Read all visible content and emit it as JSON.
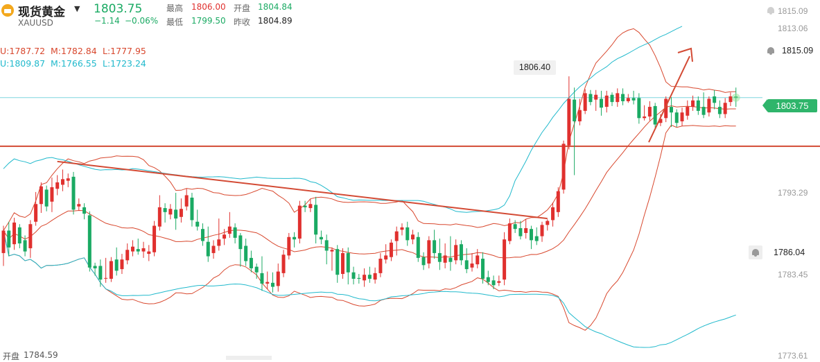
{
  "header": {
    "name": "现货黄金",
    "symbol": "XAUUSD",
    "price": "1803.75",
    "change": "−1.14",
    "change_pct": "−0.06%",
    "high_label": "最高",
    "high": "1806.00",
    "low_label": "最低",
    "low": "1799.50",
    "open_label": "开盘",
    "open": "1804.84",
    "prev_close_label": "昨收",
    "prev_close": "1804.89"
  },
  "bands": {
    "red": {
      "u": "U:1787.72",
      "m": "M:1782.84",
      "l": "L:1777.95"
    },
    "cyan": {
      "u": "U:1809.87",
      "m": "M:1766.55",
      "l": "L:1723.24"
    }
  },
  "bottom": {
    "open_label": "开盘",
    "open_value": "1784.59"
  },
  "price_axis": {
    "ticks": [
      "1815.09",
      "1813.06",
      "1793.29",
      "1783.45",
      "1773.61"
    ],
    "current_price": "1803.75",
    "alerts": [
      "1815.09",
      "1815.09",
      "1786.04"
    ]
  },
  "colors": {
    "up": "#e0302e",
    "down": "#1aaa63",
    "band_red": "#d8472d",
    "band_cyan": "#20b9cc",
    "annotation": "#d34a34"
  },
  "chart_data": {
    "type": "candlestick",
    "title": "现货黄金 XAUUSD",
    "ylim": [
      1771.1,
      1815.9
    ],
    "high_marker": "1806.40",
    "horizontal_line": 1797.7,
    "current_price": 1803.75,
    "annotation": "up-arrow",
    "candles": [
      [
        1784.4,
        1787.2,
        1782.8,
        1787.8
      ],
      [
        1787.2,
        1785.1,
        1784.0,
        1788.3
      ],
      [
        1785.5,
        1788.2,
        1784.8,
        1788.8
      ],
      [
        1787.6,
        1785.6,
        1785.0,
        1788.0
      ],
      [
        1786.0,
        1784.6,
        1784.0,
        1786.6
      ],
      [
        1785.0,
        1788.0,
        1783.8,
        1788.5
      ],
      [
        1788.3,
        1790.5,
        1787.8,
        1792.0
      ],
      [
        1790.5,
        1792.7,
        1789.4,
        1793.2
      ],
      [
        1792.3,
        1790.2,
        1789.6,
        1792.8
      ],
      [
        1790.8,
        1792.6,
        1789.5,
        1793.8
      ],
      [
        1792.4,
        1793.2,
        1791.6,
        1794.1
      ],
      [
        1792.9,
        1793.6,
        1792.1,
        1794.8
      ],
      [
        1793.4,
        1793.7,
        1792.6,
        1794.3
      ],
      [
        1793.9,
        1789.8,
        1789.2,
        1794.5
      ],
      [
        1790.2,
        1790.5,
        1789.7,
        1791.2
      ],
      [
        1790.1,
        1789.3,
        1788.6,
        1790.6
      ],
      [
        1789.1,
        1782.6,
        1782.1,
        1789.6
      ],
      [
        1782.8,
        1782.5,
        1781.6,
        1783.2
      ],
      [
        1782.8,
        1781.1,
        1780.2,
        1783.6
      ],
      [
        1781.3,
        1781.3,
        1780.7,
        1783.8
      ],
      [
        1781.2,
        1783.4,
        1780.8,
        1783.9
      ],
      [
        1783.6,
        1782.2,
        1781.6,
        1785.1
      ],
      [
        1782.4,
        1783.6,
        1781.8,
        1784.3
      ],
      [
        1783.5,
        1784.8,
        1783.0,
        1785.6
      ],
      [
        1784.6,
        1785.2,
        1784.0,
        1786.0
      ],
      [
        1784.9,
        1784.6,
        1784.2,
        1786.2
      ],
      [
        1784.6,
        1785.0,
        1783.8,
        1785.8
      ],
      [
        1784.3,
        1784.6,
        1783.4,
        1785.4
      ],
      [
        1784.5,
        1787.8,
        1784.0,
        1788.4
      ],
      [
        1787.7,
        1790.1,
        1787.2,
        1791.6
      ],
      [
        1790.0,
        1789.5,
        1788.2,
        1790.6
      ],
      [
        1789.2,
        1789.9,
        1788.6,
        1790.5
      ],
      [
        1789.8,
        1788.7,
        1787.3,
        1791.9
      ],
      [
        1788.9,
        1789.9,
        1788.2,
        1791.2
      ],
      [
        1790.2,
        1791.6,
        1789.7,
        1792.4
      ],
      [
        1791.3,
        1788.5,
        1787.7,
        1791.9
      ],
      [
        1788.3,
        1787.7,
        1787.2,
        1789.8
      ],
      [
        1787.4,
        1785.9,
        1785.3,
        1788.1
      ],
      [
        1785.8,
        1784.0,
        1783.3,
        1787.7
      ],
      [
        1784.4,
        1785.3,
        1783.7,
        1786.0
      ],
      [
        1785.3,
        1786.1,
        1784.7,
        1788.7
      ],
      [
        1786.2,
        1786.7,
        1785.4,
        1787.4
      ],
      [
        1786.8,
        1787.7,
        1786.3,
        1789.5
      ],
      [
        1787.6,
        1786.3,
        1785.6,
        1788.1
      ],
      [
        1786.6,
        1784.9,
        1782.7,
        1786.9
      ],
      [
        1785.3,
        1783.4,
        1782.8,
        1786.2
      ],
      [
        1783.8,
        1782.5,
        1782.0,
        1784.7
      ],
      [
        1782.7,
        1782.0,
        1781.2,
        1783.1
      ],
      [
        1781.9,
        1780.6,
        1779.7,
        1784.0
      ],
      [
        1780.6,
        1780.8,
        1779.9,
        1782.1
      ],
      [
        1780.7,
        1780.2,
        1779.5,
        1782.0
      ],
      [
        1780.3,
        1782.1,
        1779.6,
        1783.1
      ],
      [
        1781.9,
        1784.2,
        1781.4,
        1784.8
      ],
      [
        1784.1,
        1786.4,
        1783.6,
        1786.9
      ],
      [
        1786.4,
        1786.1,
        1785.1,
        1787.0
      ],
      [
        1786.2,
        1790.3,
        1785.6,
        1790.9
      ],
      [
        1790.3,
        1790.1,
        1789.5,
        1790.9
      ],
      [
        1790.0,
        1790.5,
        1789.5,
        1791.1
      ],
      [
        1790.4,
        1786.7,
        1785.6,
        1791.4
      ],
      [
        1786.4,
        1786.1,
        1785.5,
        1787.2
      ],
      [
        1786.0,
        1784.7,
        1783.0,
        1786.7
      ],
      [
        1784.6,
        1784.8,
        1782.2,
        1785.1
      ],
      [
        1784.9,
        1781.7,
        1780.7,
        1785.4
      ],
      [
        1781.8,
        1784.4,
        1781.2,
        1785.0
      ],
      [
        1784.4,
        1782.0,
        1780.5,
        1785.1
      ],
      [
        1782.0,
        1781.2,
        1780.5,
        1782.7
      ],
      [
        1781.3,
        1781.2,
        1780.6,
        1781.8
      ],
      [
        1781.0,
        1781.7,
        1780.2,
        1782.5
      ],
      [
        1781.7,
        1781.2,
        1780.7,
        1782.7
      ],
      [
        1781.1,
        1781.9,
        1780.6,
        1782.6
      ],
      [
        1781.9,
        1783.7,
        1781.4,
        1784.4
      ],
      [
        1783.6,
        1784.1,
        1783.1,
        1785.5
      ],
      [
        1783.9,
        1785.7,
        1783.4,
        1786.1
      ],
      [
        1785.9,
        1787.1,
        1784.1,
        1787.7
      ],
      [
        1787.3,
        1787.6,
        1786.6,
        1788.1
      ],
      [
        1787.6,
        1786.0,
        1785.3,
        1788.3
      ],
      [
        1786.1,
        1786.7,
        1785.5,
        1787.3
      ],
      [
        1786.4,
        1783.8,
        1783.3,
        1787.0
      ],
      [
        1783.9,
        1782.9,
        1782.3,
        1784.5
      ],
      [
        1783.1,
        1786.0,
        1782.5,
        1786.5
      ],
      [
        1786.0,
        1784.4,
        1783.7,
        1787.3
      ],
      [
        1784.4,
        1783.3,
        1782.3,
        1786.2
      ],
      [
        1783.2,
        1784.1,
        1782.5,
        1785.6
      ],
      [
        1783.8,
        1783.3,
        1782.2,
        1786.5
      ],
      [
        1783.5,
        1785.4,
        1783.0,
        1786.1
      ],
      [
        1785.5,
        1783.5,
        1782.9,
        1786.0
      ],
      [
        1783.5,
        1782.4,
        1781.9,
        1785.0
      ],
      [
        1782.6,
        1783.1,
        1782.1,
        1784.4
      ],
      [
        1783.0,
        1784.1,
        1782.5,
        1784.9
      ],
      [
        1783.7,
        1781.2,
        1780.6,
        1784.5
      ],
      [
        1781.4,
        1780.8,
        1780.4,
        1782.2
      ],
      [
        1781.0,
        1780.4,
        1779.9,
        1781.6
      ],
      [
        1780.7,
        1780.9,
        1780.3,
        1781.6
      ],
      [
        1781.1,
        1786.1,
        1780.4,
        1787.0
      ],
      [
        1785.9,
        1788.1,
        1785.5,
        1788.7
      ],
      [
        1788.0,
        1787.4,
        1786.9,
        1788.5
      ],
      [
        1787.5,
        1786.5,
        1786.1,
        1788.4
      ],
      [
        1786.9,
        1787.5,
        1786.2,
        1788.6
      ],
      [
        1787.4,
        1786.0,
        1784.9,
        1787.8
      ],
      [
        1786.5,
        1785.9,
        1785.4,
        1787.6
      ],
      [
        1786.5,
        1787.9,
        1785.8,
        1788.3
      ],
      [
        1787.9,
        1788.4,
        1787.2,
        1788.6
      ],
      [
        1788.5,
        1790.1,
        1787.7,
        1790.7
      ],
      [
        1789.5,
        1792.1,
        1788.9,
        1792.6
      ],
      [
        1792.3,
        1798.0,
        1791.8,
        1798.4
      ],
      [
        1797.8,
        1803.6,
        1797.3,
        1806.4
      ],
      [
        1803.5,
        1800.8,
        1794.1,
        1805.0
      ],
      [
        1800.8,
        1802.2,
        1800.3,
        1803.6
      ],
      [
        1802.1,
        1804.3,
        1801.7,
        1804.8
      ],
      [
        1804.2,
        1803.2,
        1802.8,
        1804.7
      ],
      [
        1803.5,
        1804.1,
        1802.1,
        1804.7
      ],
      [
        1803.6,
        1802.5,
        1801.5,
        1804.6
      ],
      [
        1802.6,
        1804.0,
        1801.9,
        1804.6
      ],
      [
        1804.1,
        1803.2,
        1802.7,
        1804.4
      ],
      [
        1803.2,
        1804.3,
        1802.6,
        1804.9
      ],
      [
        1804.2,
        1803.3,
        1802.8,
        1804.9
      ],
      [
        1803.3,
        1803.7,
        1803.1,
        1804.2
      ],
      [
        1803.7,
        1803.4,
        1802.9,
        1804.6
      ],
      [
        1803.7,
        1801.2,
        1800.5,
        1804.3
      ],
      [
        1801.2,
        1801.4,
        1800.9,
        1802.8
      ],
      [
        1801.4,
        1802.6,
        1800.9,
        1803.3
      ],
      [
        1802.7,
        1800.4,
        1800.0,
        1803.1
      ],
      [
        1800.6,
        1801.1,
        1800.2,
        1801.7
      ],
      [
        1801.2,
        1803.6,
        1800.7,
        1803.9
      ],
      [
        1802.6,
        1801.9,
        1800.1,
        1803.8
      ],
      [
        1801.9,
        1800.6,
        1800.1,
        1802.3
      ],
      [
        1800.8,
        1801.9,
        1800.2,
        1802.5
      ],
      [
        1801.5,
        1802.6,
        1801.0,
        1803.4
      ],
      [
        1802.6,
        1803.4,
        1802.1,
        1804.0
      ],
      [
        1803.4,
        1802.1,
        1801.6,
        1803.9
      ],
      [
        1802.6,
        1801.6,
        1801.2,
        1804.4
      ],
      [
        1801.9,
        1803.6,
        1801.4,
        1803.9
      ],
      [
        1803.9,
        1803.1,
        1802.3,
        1804.7
      ],
      [
        1802.6,
        1801.7,
        1801.2,
        1803.4
      ],
      [
        1801.7,
        1803.1,
        1801.2,
        1803.7
      ],
      [
        1803.2,
        1803.9,
        1802.7,
        1804.4
      ],
      [
        1803.9,
        1803.7,
        1802.6,
        1805.0
      ]
    ]
  }
}
